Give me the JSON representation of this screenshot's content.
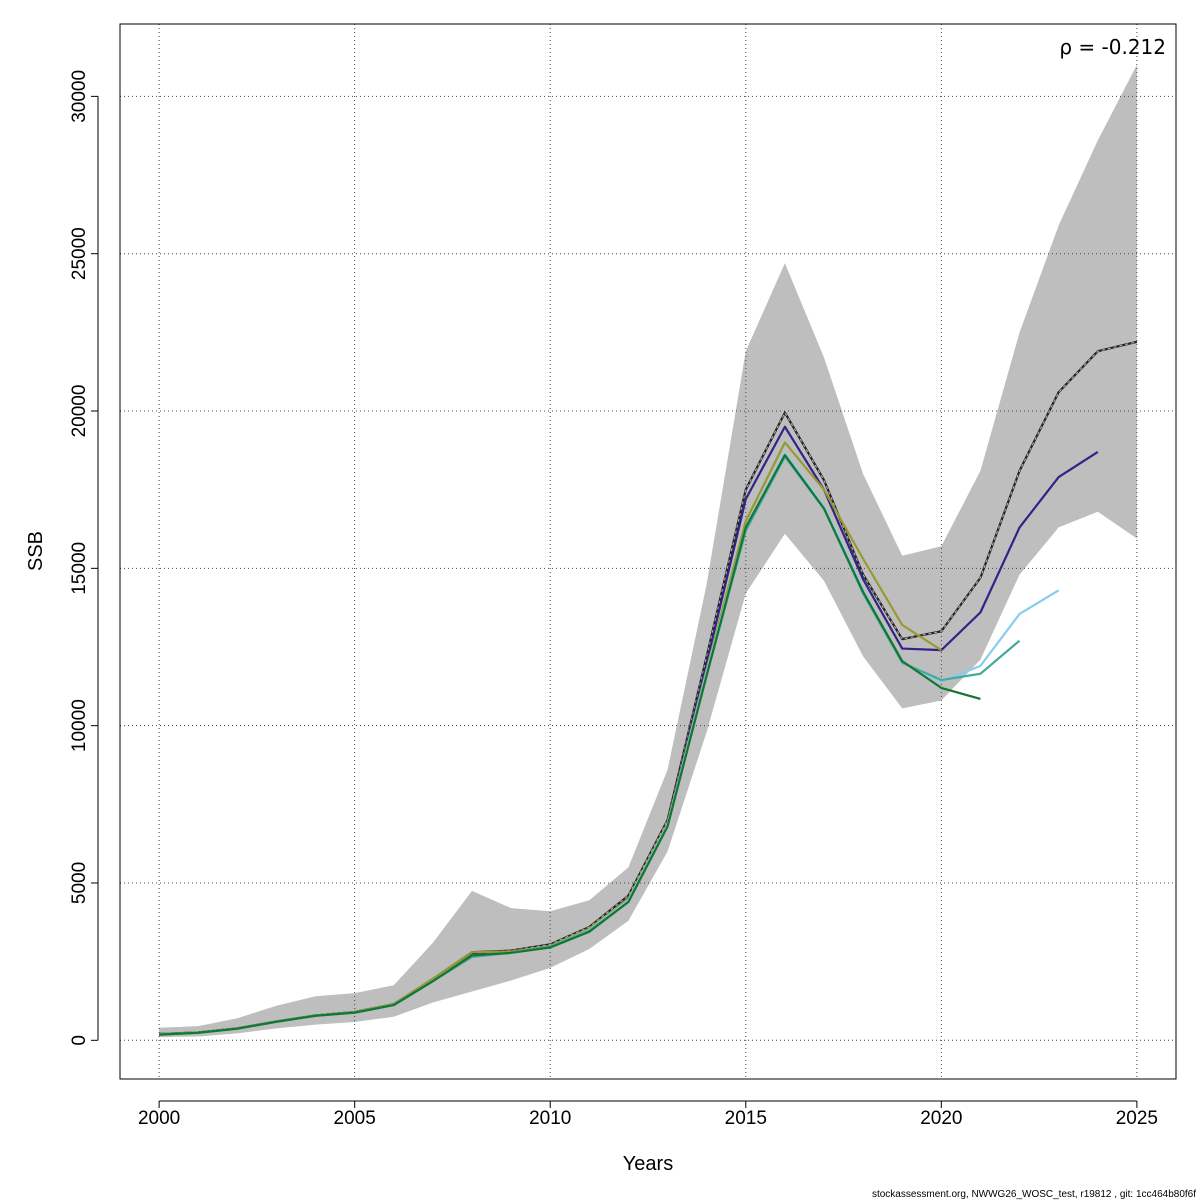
{
  "chart_data": {
    "type": "line",
    "xlabel": "Years",
    "ylabel": "SSB",
    "xlim": [
      1999,
      2026
    ],
    "ylim": [
      -1230,
      32300
    ],
    "x_ticks": [
      2000,
      2005,
      2010,
      2015,
      2020,
      2025
    ],
    "y_ticks": [
      0,
      5000,
      10000,
      15000,
      20000,
      25000,
      30000
    ],
    "x_tick_labels": [
      "2000",
      "2005",
      "2010",
      "2015",
      "2020",
      "2025"
    ],
    "y_tick_labels": [
      "0",
      "5000",
      "10000",
      "15000",
      "20000",
      "25000",
      "30000"
    ],
    "grid": true,
    "annotation": "ρ = -0.212",
    "footer": "stockassessment.org, NWWG26_WOSC_test, r19812 , git: 1cc464b80f6f",
    "confidence_band": {
      "color": "#bebebe",
      "x": [
        2000,
        2001,
        2002,
        2003,
        2004,
        2005,
        2006,
        2007,
        2008,
        2009,
        2010,
        2011,
        2012,
        2013,
        2014,
        2015,
        2016,
        2017,
        2018,
        2019,
        2020,
        2021,
        2022,
        2023,
        2024,
        2025
      ],
      "upper": [
        400,
        450,
        700,
        1100,
        1400,
        1500,
        1750,
        3100,
        4750,
        4200,
        4100,
        4450,
        5500,
        8600,
        14500,
        21900,
        24700,
        21700,
        18000,
        15400,
        15700,
        18100,
        22500,
        25900,
        28600,
        31000
      ],
      "lower": [
        100,
        120,
        220,
        380,
        500,
        580,
        750,
        1200,
        1550,
        1900,
        2300,
        2900,
        3800,
        6000,
        9800,
        14200,
        16100,
        14600,
        12200,
        10550,
        10800,
        12100,
        14800,
        16300,
        16800,
        15950
      ]
    },
    "series": [
      {
        "color": "#222222",
        "dashed": true,
        "x": [
          2000,
          2001,
          2002,
          2003,
          2004,
          2005,
          2006,
          2007,
          2008,
          2009,
          2010,
          2011,
          2012,
          2013,
          2014,
          2015,
          2016,
          2017,
          2018,
          2019,
          2020,
          2021,
          2022,
          2023,
          2024,
          2025
        ],
        "values": [
          200,
          250,
          380,
          600,
          790,
          900,
          1150,
          1950,
          2800,
          2850,
          3050,
          3600,
          4600,
          7000,
          12200,
          17500,
          19950,
          17800,
          14800,
          12750,
          13000,
          14700,
          18100,
          20600,
          21900,
          22200
        ]
      },
      {
        "color": "#332288",
        "x": [
          2000,
          2001,
          2002,
          2003,
          2004,
          2005,
          2006,
          2007,
          2008,
          2009,
          2010,
          2011,
          2012,
          2013,
          2014,
          2015,
          2016,
          2017,
          2018,
          2019,
          2020,
          2021,
          2022,
          2023,
          2024
        ],
        "values": [
          200,
          250,
          380,
          600,
          790,
          900,
          1150,
          1900,
          2750,
          2820,
          3000,
          3550,
          4500,
          6900,
          12000,
          17200,
          19500,
          17500,
          14650,
          12450,
          12400,
          13600,
          16300,
          17900,
          18700
        ]
      },
      {
        "color": "#999933",
        "x": [
          2000,
          2001,
          2002,
          2003,
          2004,
          2005,
          2006,
          2007,
          2008,
          2009,
          2010,
          2011,
          2012,
          2013,
          2014,
          2015,
          2016,
          2017,
          2018,
          2019,
          2020
        ],
        "values": [
          200,
          250,
          380,
          600,
          790,
          900,
          1150,
          1950,
          2800,
          2820,
          3000,
          3550,
          4500,
          6900,
          11800,
          16500,
          19000,
          17500,
          15300,
          13200,
          12400
        ]
      },
      {
        "color": "#88CCEE",
        "x": [
          2000,
          2001,
          2002,
          2003,
          2004,
          2005,
          2006,
          2007,
          2008,
          2009,
          2010,
          2011,
          2012,
          2013,
          2014,
          2015,
          2016,
          2017,
          2018,
          2019,
          2020,
          2021,
          2022,
          2023
        ],
        "values": [
          180,
          240,
          370,
          590,
          780,
          880,
          1120,
          1880,
          2700,
          2780,
          2980,
          3500,
          4450,
          6850,
          11700,
          16300,
          18650,
          16950,
          14300,
          12000,
          11400,
          11900,
          13550,
          14300
        ]
      },
      {
        "color": "#44AA99",
        "x": [
          2000,
          2001,
          2002,
          2003,
          2004,
          2005,
          2006,
          2007,
          2008,
          2009,
          2010,
          2011,
          2012,
          2013,
          2014,
          2015,
          2016,
          2017,
          2018,
          2019,
          2020,
          2021,
          2022
        ],
        "values": [
          180,
          240,
          370,
          590,
          780,
          880,
          1120,
          1880,
          2650,
          2780,
          2980,
          3480,
          4400,
          6800,
          11600,
          16200,
          18550,
          16900,
          14200,
          12000,
          11450,
          11650,
          12700
        ]
      },
      {
        "color": "#117733",
        "x": [
          2000,
          2001,
          2002,
          2003,
          2004,
          2005,
          2006,
          2007,
          2008,
          2009,
          2010,
          2011,
          2012,
          2013,
          2014,
          2015,
          2016,
          2017,
          2018,
          2019,
          2020,
          2021
        ],
        "values": [
          180,
          240,
          370,
          590,
          780,
          880,
          1120,
          1880,
          2700,
          2780,
          2950,
          3450,
          4400,
          6800,
          11600,
          16300,
          18600,
          16900,
          14250,
          12050,
          11200,
          10850
        ]
      }
    ]
  }
}
